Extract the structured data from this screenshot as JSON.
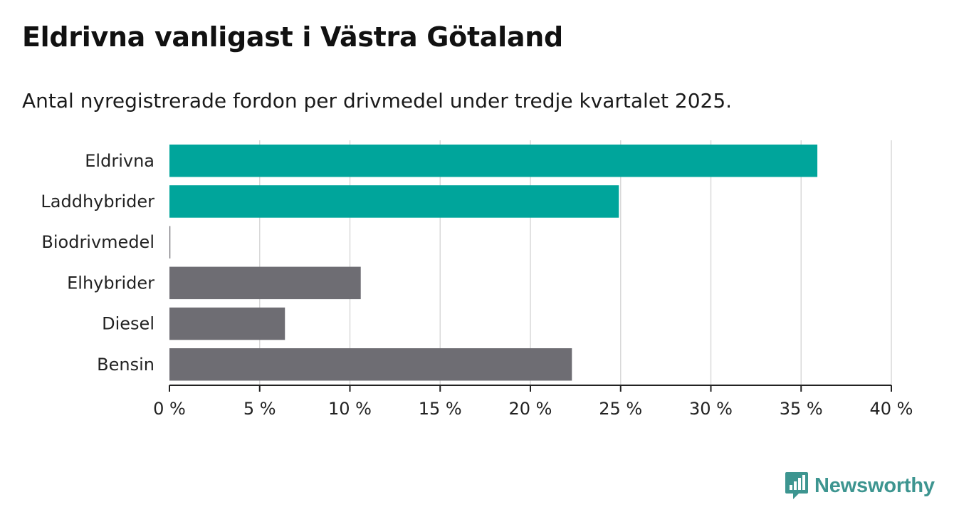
{
  "chart_data": {
    "type": "bar",
    "orientation": "horizontal",
    "title": "Eldrivna vanligast i Västra Götaland",
    "subtitle": "Antal nyregistrerade fordon per drivmedel under tredje kvartalet 2025.",
    "categories": [
      "Eldrivna",
      "Laddhybrider",
      "Biodrivmedel",
      "Elhybrider",
      "Diesel",
      "Bensin"
    ],
    "values": [
      35.9,
      24.9,
      0.05,
      10.6,
      6.4,
      22.3
    ],
    "bar_colors": [
      "#00a59b",
      "#00a59b",
      "#6e6d73",
      "#6e6d73",
      "#6e6d73",
      "#6e6d73"
    ],
    "xlim": [
      0,
      40
    ],
    "x_ticks": [
      0,
      5,
      10,
      15,
      20,
      25,
      30,
      35,
      40
    ],
    "x_tick_labels": [
      "0 %",
      "5 %",
      "10 %",
      "15 %",
      "20 %",
      "25 %",
      "30 %",
      "35 %",
      "40 %"
    ],
    "xlabel": "",
    "ylabel": "",
    "grid": true
  },
  "brand": {
    "name": "Newsworthy",
    "color": "#3d9590"
  }
}
